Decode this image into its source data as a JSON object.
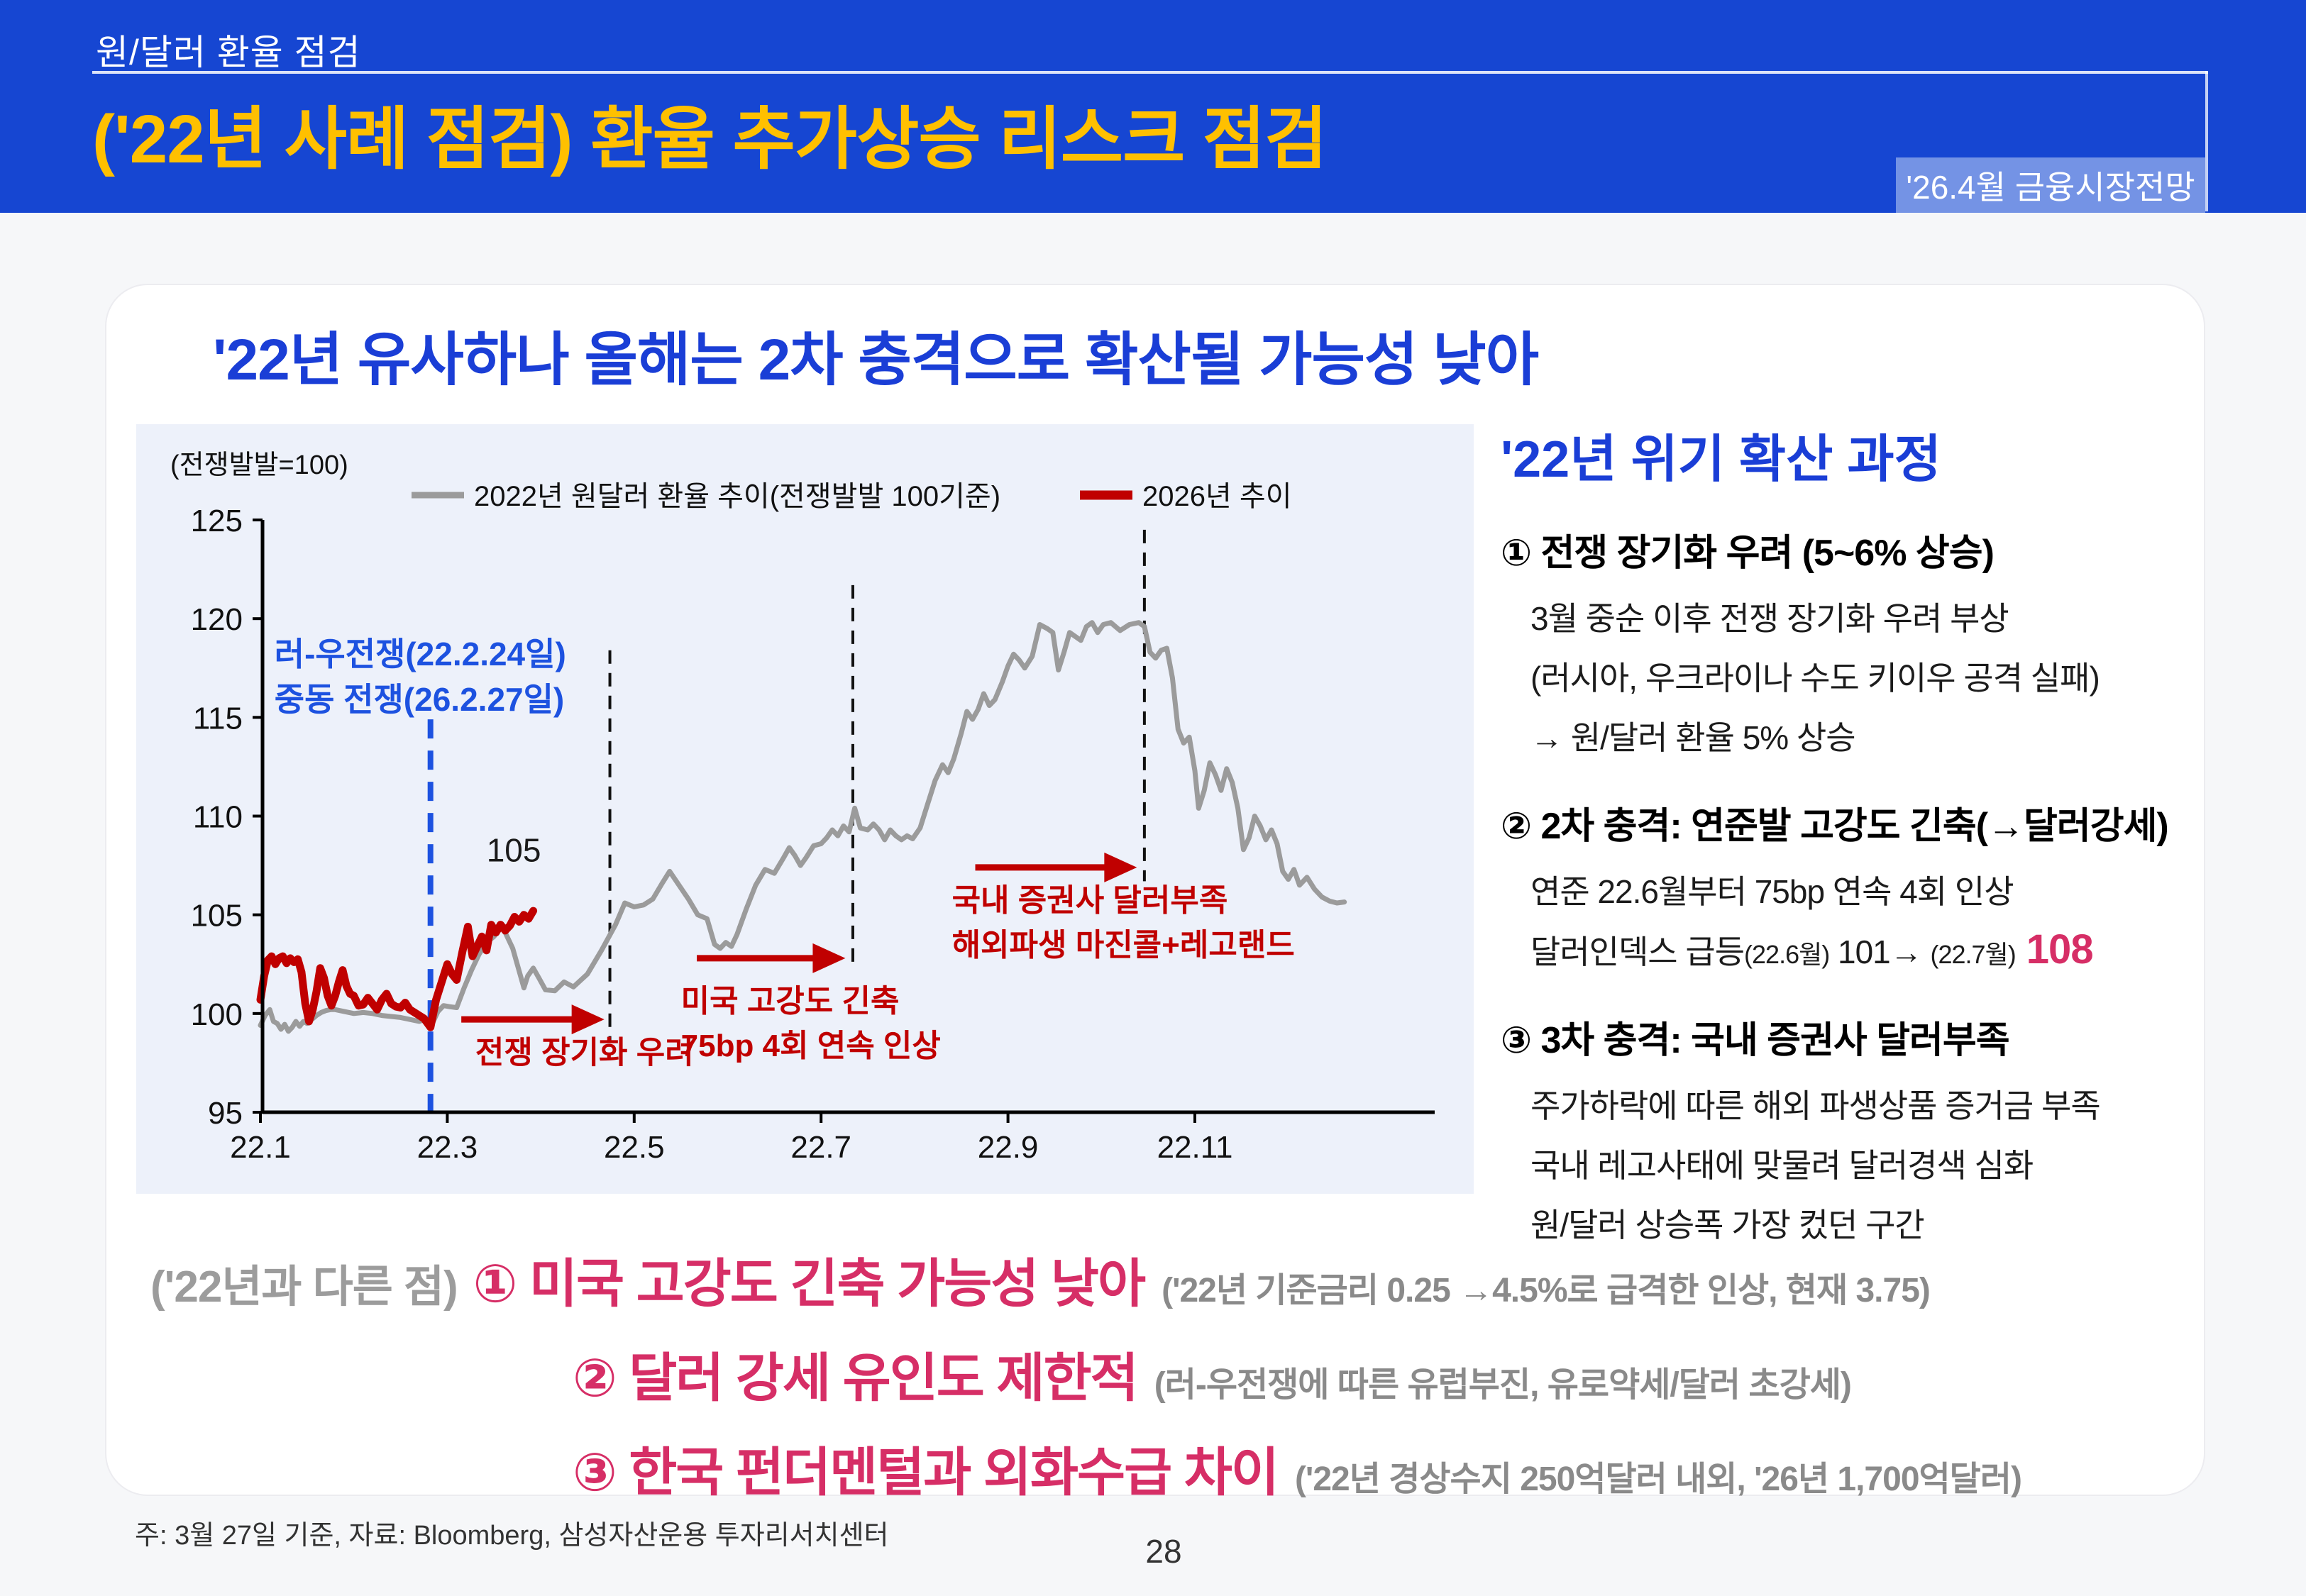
{
  "header": {
    "section_label": "원/달러 환율 점검",
    "title": "('22년 사례 점검) 환율 추가상승 리스크 점검",
    "badge": "'26.4월 금융시장전망"
  },
  "card": {
    "subtitle": "'22년 유사하나 올해는 2차 충격으로 확산될 가능성 낮아"
  },
  "chart_data": {
    "type": "line",
    "unit_label": "(전쟁발발=100)",
    "ylim": [
      95,
      125
    ],
    "yticks": [
      95,
      100,
      105,
      110,
      115,
      120,
      125
    ],
    "xticks": [
      {
        "m": 1,
        "label": "22.1"
      },
      {
        "m": 3,
        "label": "22.3"
      },
      {
        "m": 5,
        "label": "22.5"
      },
      {
        "m": 7,
        "label": "22.7"
      },
      {
        "m": 9,
        "label": "22.9"
      },
      {
        "m": 11,
        "label": "22.11"
      }
    ],
    "grid": false,
    "legend_position": "top",
    "series": [
      {
        "name": "2022년 원달러 환율 추이(전쟁발발 100기준)",
        "color": "#9B9B9B",
        "width": 7,
        "swatch_width": 9,
        "points": [
          [
            1.0,
            99.4
          ],
          [
            1.05,
            99.9
          ],
          [
            1.1,
            100.2
          ],
          [
            1.14,
            99.6
          ],
          [
            1.18,
            99.5
          ],
          [
            1.22,
            99.2
          ],
          [
            1.26,
            99.45
          ],
          [
            1.3,
            99.1
          ],
          [
            1.34,
            99.3
          ],
          [
            1.38,
            99.6
          ],
          [
            1.42,
            99.35
          ],
          [
            1.46,
            99.6
          ],
          [
            1.5,
            99.5
          ],
          [
            1.55,
            99.7
          ],
          [
            1.6,
            99.9
          ],
          [
            1.65,
            100.05
          ],
          [
            1.7,
            100.15
          ],
          [
            1.75,
            100.2
          ],
          [
            1.8,
            100.2
          ],
          [
            1.85,
            100.15
          ],
          [
            1.9,
            100.1
          ],
          [
            1.95,
            100.05
          ],
          [
            2.0,
            100.0
          ],
          [
            2.1,
            100.05
          ],
          [
            2.2,
            100.0
          ],
          [
            2.3,
            99.9
          ],
          [
            2.4,
            99.85
          ],
          [
            2.5,
            99.8
          ],
          [
            2.6,
            99.7
          ],
          [
            2.7,
            99.6
          ],
          [
            2.76,
            99.7
          ],
          [
            2.82,
            99.3
          ],
          [
            2.9,
            100.1
          ],
          [
            2.96,
            100.4
          ],
          [
            3.02,
            100.35
          ],
          [
            3.1,
            100.3
          ],
          [
            3.18,
            101.3
          ],
          [
            3.26,
            102.2
          ],
          [
            3.34,
            103.0
          ],
          [
            3.42,
            103.6
          ],
          [
            3.5,
            103.9
          ],
          [
            3.58,
            104.5
          ],
          [
            3.64,
            103.9
          ],
          [
            3.7,
            103.3
          ],
          [
            3.76,
            102.3
          ],
          [
            3.82,
            101.3
          ],
          [
            3.86,
            101.9
          ],
          [
            3.92,
            102.3
          ],
          [
            3.98,
            101.8
          ],
          [
            4.05,
            101.2
          ],
          [
            4.15,
            101.15
          ],
          [
            4.25,
            101.6
          ],
          [
            4.35,
            101.35
          ],
          [
            4.5,
            102.0
          ],
          [
            4.65,
            103.2
          ],
          [
            4.8,
            104.5
          ],
          [
            4.9,
            105.6
          ],
          [
            5.0,
            105.4
          ],
          [
            5.1,
            105.5
          ],
          [
            5.2,
            105.8
          ],
          [
            5.3,
            106.6
          ],
          [
            5.38,
            107.2
          ],
          [
            5.48,
            106.5
          ],
          [
            5.58,
            105.8
          ],
          [
            5.68,
            105.0
          ],
          [
            5.78,
            104.8
          ],
          [
            5.86,
            103.5
          ],
          [
            5.92,
            103.3
          ],
          [
            5.98,
            103.6
          ],
          [
            6.04,
            103.4
          ],
          [
            6.1,
            104.0
          ],
          [
            6.2,
            105.3
          ],
          [
            6.3,
            106.5
          ],
          [
            6.4,
            107.3
          ],
          [
            6.5,
            107.1
          ],
          [
            6.6,
            107.9
          ],
          [
            6.66,
            108.4
          ],
          [
            6.72,
            108.0
          ],
          [
            6.78,
            107.5
          ],
          [
            6.84,
            107.9
          ],
          [
            6.92,
            108.5
          ],
          [
            7.0,
            108.6
          ],
          [
            7.06,
            108.9
          ],
          [
            7.12,
            109.3
          ],
          [
            7.18,
            109.0
          ],
          [
            7.24,
            109.5
          ],
          [
            7.3,
            109.2
          ],
          [
            7.36,
            110.4
          ],
          [
            7.42,
            109.4
          ],
          [
            7.5,
            109.3
          ],
          [
            7.56,
            109.6
          ],
          [
            7.62,
            109.3
          ],
          [
            7.68,
            108.8
          ],
          [
            7.74,
            109.3
          ],
          [
            7.8,
            109.0
          ],
          [
            7.86,
            108.8
          ],
          [
            7.92,
            109.0
          ],
          [
            7.98,
            108.85
          ],
          [
            8.06,
            109.4
          ],
          [
            8.14,
            110.6
          ],
          [
            8.22,
            111.8
          ],
          [
            8.3,
            112.6
          ],
          [
            8.36,
            112.2
          ],
          [
            8.42,
            112.9
          ],
          [
            8.5,
            114.2
          ],
          [
            8.56,
            115.3
          ],
          [
            8.62,
            114.9
          ],
          [
            8.68,
            115.4
          ],
          [
            8.74,
            116.2
          ],
          [
            8.8,
            115.6
          ],
          [
            8.86,
            115.9
          ],
          [
            8.94,
            116.8
          ],
          [
            9.0,
            117.6
          ],
          [
            9.06,
            118.2
          ],
          [
            9.12,
            117.9
          ],
          [
            9.18,
            117.5
          ],
          [
            9.26,
            118.1
          ],
          [
            9.34,
            119.7
          ],
          [
            9.42,
            119.5
          ],
          [
            9.48,
            119.3
          ],
          [
            9.54,
            117.4
          ],
          [
            9.6,
            118.3
          ],
          [
            9.66,
            119.3
          ],
          [
            9.72,
            119.1
          ],
          [
            9.78,
            118.9
          ],
          [
            9.84,
            119.6
          ],
          [
            9.9,
            119.8
          ],
          [
            9.96,
            119.3
          ],
          [
            10.02,
            119.7
          ],
          [
            10.1,
            119.8
          ],
          [
            10.2,
            119.4
          ],
          [
            10.3,
            119.7
          ],
          [
            10.4,
            119.8
          ],
          [
            10.46,
            119.6
          ],
          [
            10.52,
            118.3
          ],
          [
            10.58,
            118.0
          ],
          [
            10.64,
            118.4
          ],
          [
            10.7,
            118.5
          ],
          [
            10.76,
            117.0
          ],
          [
            10.82,
            114.4
          ],
          [
            10.88,
            113.7
          ],
          [
            10.94,
            114.0
          ],
          [
            11.0,
            112.3
          ],
          [
            11.04,
            110.4
          ],
          [
            11.1,
            111.3
          ],
          [
            11.16,
            112.7
          ],
          [
            11.22,
            112.1
          ],
          [
            11.28,
            111.3
          ],
          [
            11.34,
            112.4
          ],
          [
            11.4,
            111.7
          ],
          [
            11.46,
            110.4
          ],
          [
            11.52,
            108.3
          ],
          [
            11.58,
            108.9
          ],
          [
            11.64,
            110.0
          ],
          [
            11.7,
            109.5
          ],
          [
            11.76,
            108.8
          ],
          [
            11.82,
            109.3
          ],
          [
            11.88,
            108.6
          ],
          [
            11.94,
            107.2
          ],
          [
            12.0,
            106.8
          ],
          [
            12.06,
            107.3
          ],
          [
            12.12,
            106.5
          ],
          [
            12.2,
            106.9
          ],
          [
            12.28,
            106.3
          ],
          [
            12.36,
            105.9
          ],
          [
            12.44,
            105.7
          ],
          [
            12.52,
            105.6
          ],
          [
            12.6,
            105.65
          ]
        ]
      },
      {
        "name": "2026년 추이",
        "color": "#C00000",
        "width": 11,
        "swatch_width": 13,
        "points": [
          [
            1.0,
            100.7
          ],
          [
            1.04,
            101.9
          ],
          [
            1.08,
            102.7
          ],
          [
            1.12,
            102.9
          ],
          [
            1.16,
            102.5
          ],
          [
            1.2,
            102.8
          ],
          [
            1.24,
            102.9
          ],
          [
            1.28,
            102.55
          ],
          [
            1.32,
            102.8
          ],
          [
            1.36,
            102.6
          ],
          [
            1.4,
            102.75
          ],
          [
            1.44,
            102.1
          ],
          [
            1.48,
            100.5
          ],
          [
            1.52,
            99.6
          ],
          [
            1.56,
            100.2
          ],
          [
            1.6,
            101.1
          ],
          [
            1.64,
            102.3
          ],
          [
            1.68,
            101.8
          ],
          [
            1.72,
            100.9
          ],
          [
            1.76,
            100.4
          ],
          [
            1.8,
            100.9
          ],
          [
            1.84,
            101.6
          ],
          [
            1.88,
            102.2
          ],
          [
            1.92,
            101.4
          ],
          [
            1.96,
            101.0
          ],
          [
            2.0,
            100.9
          ],
          [
            2.05,
            100.4
          ],
          [
            2.1,
            100.45
          ],
          [
            2.15,
            100.8
          ],
          [
            2.2,
            100.5
          ],
          [
            2.25,
            100.2
          ],
          [
            2.3,
            100.7
          ],
          [
            2.35,
            101.0
          ],
          [
            2.4,
            100.5
          ],
          [
            2.45,
            100.35
          ],
          [
            2.5,
            100.3
          ],
          [
            2.55,
            100.55
          ],
          [
            2.6,
            100.2
          ],
          [
            2.65,
            100.05
          ],
          [
            2.7,
            99.9
          ],
          [
            2.75,
            99.75
          ],
          [
            2.82,
            99.3
          ],
          [
            2.88,
            100.7
          ],
          [
            2.94,
            101.6
          ],
          [
            3.0,
            102.5
          ],
          [
            3.05,
            102.0
          ],
          [
            3.1,
            101.7
          ],
          [
            3.16,
            103.1
          ],
          [
            3.22,
            104.4
          ],
          [
            3.27,
            102.9
          ],
          [
            3.32,
            103.4
          ],
          [
            3.37,
            103.9
          ],
          [
            3.42,
            103.2
          ],
          [
            3.47,
            104.5
          ],
          [
            3.52,
            104.1
          ],
          [
            3.57,
            104.5
          ],
          [
            3.62,
            104.2
          ],
          [
            3.67,
            104.45
          ],
          [
            3.72,
            104.9
          ],
          [
            3.77,
            104.65
          ],
          [
            3.82,
            105.0
          ],
          [
            3.87,
            104.8
          ],
          [
            3.92,
            105.2
          ]
        ]
      }
    ],
    "end_value_label": {
      "text": "105",
      "m": 3.42,
      "v": 107.7
    },
    "event_line": {
      "color": "#1D52E0",
      "m": 2.82,
      "v_top": 114.9,
      "label_lines": [
        "러-우전쟁(22.2.24일)",
        "중동 전쟁(26.2.27일)"
      ],
      "label_m": 1.15
    },
    "dashed_lines": [
      {
        "m": 4.74,
        "v_top": 118.4,
        "v_bot": 98.6
      },
      {
        "m": 7.34,
        "v_top": 121.7,
        "v_bot": 102.3
      },
      {
        "m": 10.46,
        "v_top": 124.5,
        "v_bot": 106.7
      }
    ],
    "arrows": [
      {
        "x1": 3.15,
        "x2": 4.68,
        "v": 99.7,
        "lines": [
          "전쟁 장기화 우려"
        ],
        "label_m": 3.3,
        "label_v": 97.5
      },
      {
        "x1": 5.67,
        "x2": 7.26,
        "v": 102.8,
        "lines": [
          "미국 고강도 긴축",
          "75bp 4회 연속 인상"
        ],
        "label_m": 5.5,
        "label_v": 100.1
      },
      {
        "x1": 8.65,
        "x2": 10.38,
        "v": 107.4,
        "lines": [
          "국내 증권사 달러부족",
          "해외파생 마진콜+레고랜드"
        ],
        "label_m": 8.4,
        "label_v": 105.2
      }
    ]
  },
  "right_panel": {
    "title": "'22년 위기 확산 과정",
    "items": [
      {
        "heading": "① 전쟁 장기화 우려 (5~6% 상승)",
        "body": [
          [
            {
              "t": "3월 중순 이후 전쟁 장기화 우려 부상",
              "s": "n"
            }
          ],
          [
            {
              "t": "(러시아, 우크라이나 수도 키이우 공격 실패)",
              "s": "n"
            }
          ],
          [
            {
              "t": "→ 원/달러 환율 5% 상승",
              "s": "n"
            }
          ]
        ]
      },
      {
        "heading": "② 2차 충격: 연준발 고강도 긴축(→달러강세)",
        "body": [
          [
            {
              "t": "연준 22.6월부터 75bp 연속 4회 인상",
              "s": "n"
            }
          ],
          [
            {
              "t": "달러인덱스 급등",
              "s": "n"
            },
            {
              "t": "(22.6월)",
              "s": "sm"
            },
            {
              "t": " 101→ ",
              "s": "n"
            },
            {
              "t": "(22.7월)",
              "s": "sm"
            },
            {
              "t": " 108",
              "s": "pink"
            }
          ]
        ]
      },
      {
        "heading": "③ 3차 충격: 국내 증권사 달러부족",
        "body": [
          [
            {
              "t": "주가하락에 따른 해외 파생상품 증거금 부족",
              "s": "n"
            }
          ],
          [
            {
              "t": "국내 레고사태에 맞물려 달러경색 심화",
              "s": "n"
            }
          ],
          [
            {
              "t": "원/달러 상승폭 가장 컸던 구간",
              "s": "n"
            }
          ]
        ]
      }
    ]
  },
  "diff_section": {
    "rows": [
      {
        "prefix": "('22년과 다른 점)",
        "main": "① 미국 고강도 긴축 가능성 낮아",
        "suffix": "('22년 기준금리 0.25 →4.5%로 급격한 인상, 현재 3.75)"
      },
      {
        "prefix": "",
        "main": "② 달러 강세 유인도 제한적",
        "suffix": "(러-우전쟁에 따른 유럽부진, 유로약세/달러 초강세)"
      },
      {
        "prefix": "",
        "main": "③ 한국 펀더멘털과 외화수급 차이",
        "suffix": "('22년 경상수지 250억달러 내외, '26년 1,700억달러)"
      }
    ]
  },
  "footer": {
    "note": "주: 3월 27일 기준, 자료: Bloomberg, 삼성자산운용 투자리서치센터",
    "page_number": "28"
  },
  "colors": {
    "header_blue": "#1646D2",
    "badge_blue": "#7493E5",
    "title_yellow": "#FFC000",
    "accent_blue": "#1A3ED6",
    "event_blue": "#1D52E0",
    "line_gray": "#9B9B9B",
    "line_red": "#C00000",
    "highlight_pink": "#D62E66",
    "panel_bg": "#EDF1FA"
  }
}
